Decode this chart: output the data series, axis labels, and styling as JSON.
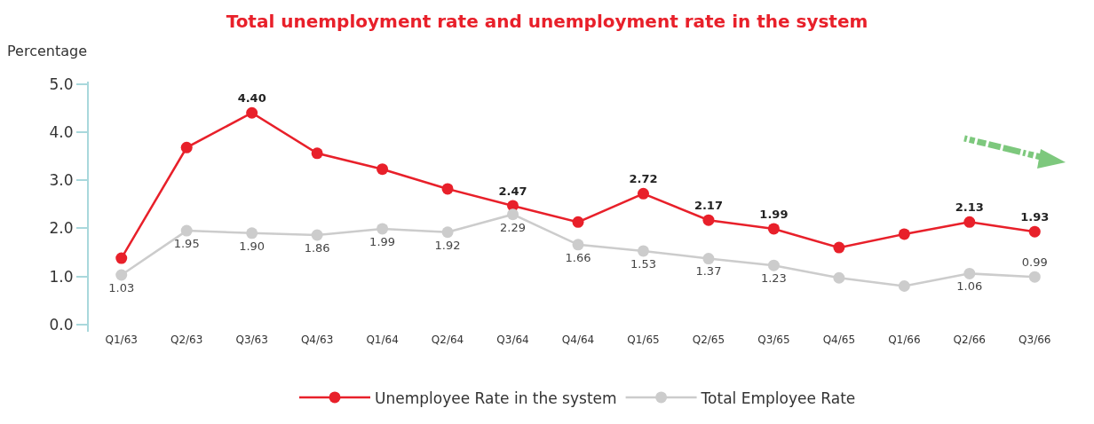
{
  "chart_data": {
    "type": "line",
    "title": "Total unemployment rate and unemployment rate in the system",
    "ylabel": "Percentage",
    "categories": [
      "Q1/63",
      "Q2/63",
      "Q3/63",
      "Q4/63",
      "Q1/64",
      "Q2/64",
      "Q3/64",
      "Q4/64",
      "Q1/65",
      "Q2/65",
      "Q3/65",
      "Q4/65",
      "Q1/66",
      "Q2/66",
      "Q3/66"
    ],
    "series": [
      {
        "name": "Unemployee Rate in the system",
        "color": "#e8202a",
        "values": [
          1.38,
          3.68,
          4.4,
          3.56,
          3.23,
          2.82,
          2.47,
          2.13,
          2.72,
          2.17,
          1.99,
          1.6,
          1.88,
          2.13,
          1.93
        ],
        "value_labels": [
          null,
          null,
          "4.40",
          null,
          null,
          null,
          "2.47",
          null,
          "2.72",
          "2.17",
          "1.99",
          null,
          null,
          "2.13",
          "1.93"
        ]
      },
      {
        "name": "Total Employee Rate",
        "color": "#cccccc",
        "values": [
          1.03,
          1.95,
          1.9,
          1.86,
          1.99,
          1.92,
          2.29,
          1.66,
          1.53,
          1.37,
          1.23,
          0.97,
          0.8,
          1.06,
          0.99
        ],
        "value_labels": [
          "1.03",
          "1.95",
          "1.90",
          "1.86",
          "1.99",
          "1.92",
          "2.29",
          "1.66",
          "1.53",
          "1.37",
          "1.23",
          null,
          null,
          "1.06",
          "0.99"
        ]
      }
    ],
    "ylim": [
      -0.15,
      5.05
    ],
    "yticks": [
      {
        "value": 0,
        "label": "0.0"
      },
      {
        "value": 1,
        "label": "1.0"
      },
      {
        "value": 2,
        "label": "2.0"
      },
      {
        "value": 3,
        "label": "3.0"
      },
      {
        "value": 4,
        "label": "4.0"
      },
      {
        "value": 5,
        "label": "5.0"
      }
    ],
    "grid": false,
    "legend": "bottom",
    "marker": "circle",
    "line_style": "solid"
  }
}
